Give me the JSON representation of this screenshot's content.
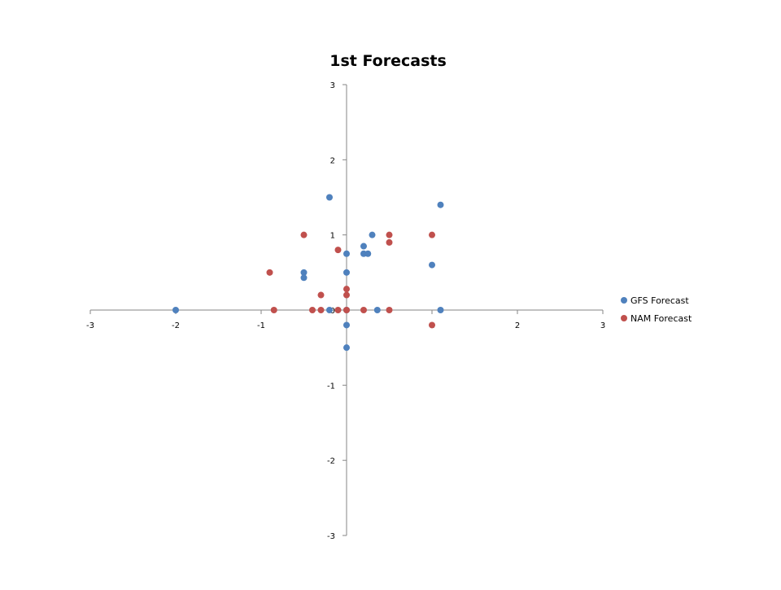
{
  "chart_data": {
    "type": "scatter",
    "title": "1st Forecasts",
    "xlabel": "",
    "ylabel": "",
    "xlim": [
      -3,
      3
    ],
    "ylim": [
      -3,
      3
    ],
    "x_ticks": [
      -3,
      -2,
      -1,
      0,
      1,
      2,
      3
    ],
    "y_ticks": [
      -3,
      -2,
      -1,
      0,
      1,
      2,
      3
    ],
    "x_tick_labels": [
      "-3",
      "-2",
      "-1",
      "0",
      "1",
      "2",
      "3"
    ],
    "y_tick_labels": [
      "-3",
      "-2",
      "-1",
      "0",
      "1",
      "2",
      "3"
    ],
    "grid": false,
    "legend_position": "right",
    "series": [
      {
        "name": "GFS Forecast",
        "color": "#4f81bd",
        "points": [
          {
            "x": -2.0,
            "y": 0.0
          },
          {
            "x": -0.5,
            "y": 0.5
          },
          {
            "x": -0.5,
            "y": 0.43
          },
          {
            "x": -0.2,
            "y": 1.5
          },
          {
            "x": -0.2,
            "y": 0.0
          },
          {
            "x": 0.0,
            "y": 0.75
          },
          {
            "x": 0.0,
            "y": 0.5
          },
          {
            "x": 0.0,
            "y": 0.0
          },
          {
            "x": 0.0,
            "y": -0.2
          },
          {
            "x": 0.0,
            "y": -0.5
          },
          {
            "x": 0.2,
            "y": 0.85
          },
          {
            "x": 0.2,
            "y": 0.75
          },
          {
            "x": 0.25,
            "y": 0.75
          },
          {
            "x": 0.3,
            "y": 1.0
          },
          {
            "x": 0.36,
            "y": 0.0
          },
          {
            "x": 1.0,
            "y": 0.6
          },
          {
            "x": 1.1,
            "y": 1.4
          },
          {
            "x": 1.1,
            "y": 0.0
          }
        ]
      },
      {
        "name": "NAM Forecast",
        "color": "#c0504d",
        "points": [
          {
            "x": -0.9,
            "y": 0.5
          },
          {
            "x": -0.85,
            "y": 0.0
          },
          {
            "x": -0.5,
            "y": 1.0
          },
          {
            "x": -0.4,
            "y": 0.0
          },
          {
            "x": -0.3,
            "y": 0.2
          },
          {
            "x": -0.3,
            "y": 0.0
          },
          {
            "x": -0.1,
            "y": 0.8
          },
          {
            "x": -0.1,
            "y": 0.0
          },
          {
            "x": 0.0,
            "y": 0.28
          },
          {
            "x": 0.0,
            "y": 0.2
          },
          {
            "x": 0.0,
            "y": 0.0
          },
          {
            "x": 0.2,
            "y": 0.0
          },
          {
            "x": 0.5,
            "y": 1.0
          },
          {
            "x": 0.5,
            "y": 0.9
          },
          {
            "x": 0.5,
            "y": 0.0
          },
          {
            "x": 1.0,
            "y": 1.0
          },
          {
            "x": 1.0,
            "y": -0.2
          }
        ]
      }
    ]
  }
}
